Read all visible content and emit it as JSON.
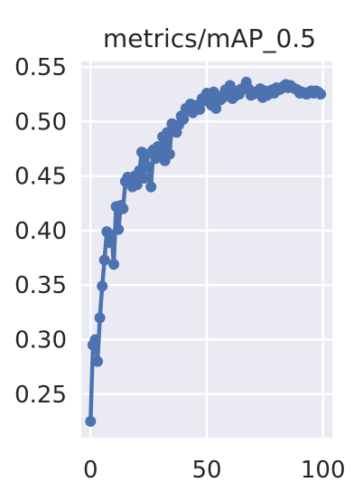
{
  "chart_data": {
    "type": "line",
    "title": "metrics/mAP_0.5",
    "xlabel": "",
    "ylabel": "",
    "xlim": [
      -4,
      104
    ],
    "ylim": [
      0.21,
      0.555
    ],
    "xticks": [
      0,
      50,
      100
    ],
    "xtick_labels": [
      "0",
      "50",
      "100"
    ],
    "yticks": [
      0.25,
      0.3,
      0.35,
      0.4,
      0.45,
      0.5,
      0.55
    ],
    "ytick_labels": [
      "0.25",
      "0.30",
      "0.35",
      "0.40",
      "0.45",
      "0.50",
      "0.55"
    ],
    "grid": true,
    "legend": false,
    "style": {
      "background": "#EAEAF2",
      "grid_color": "#FFFFFF",
      "line_color": "#4C72B0",
      "markers": true
    },
    "series": [
      {
        "x": [
          0,
          1,
          2,
          3,
          4,
          5,
          6,
          7,
          8,
          9,
          10,
          11,
          12,
          13,
          14,
          15,
          16,
          17,
          18,
          19,
          20,
          21,
          22,
          23,
          24,
          25,
          26,
          27,
          28,
          29,
          30,
          31,
          32,
          33,
          34,
          35,
          36,
          37,
          38,
          39,
          40,
          41,
          42,
          43,
          44,
          45,
          46,
          47,
          48,
          49,
          50,
          51,
          52,
          53,
          54,
          55,
          56,
          57,
          58,
          59,
          60,
          61,
          62,
          63,
          64,
          65,
          66,
          67,
          68,
          69,
          70,
          71,
          72,
          73,
          74,
          75,
          76,
          77,
          78,
          79,
          80,
          81,
          82,
          83,
          84,
          85,
          86,
          87,
          88,
          89,
          90,
          91,
          92,
          93,
          94,
          95,
          96,
          97,
          98,
          99
        ],
        "y": [
          0.225,
          0.295,
          0.3,
          0.28,
          0.32,
          0.349,
          0.373,
          0.399,
          0.389,
          0.396,
          0.369,
          0.422,
          0.401,
          0.423,
          0.42,
          0.445,
          0.449,
          0.445,
          0.44,
          0.45,
          0.442,
          0.455,
          0.472,
          0.448,
          0.47,
          0.458,
          0.44,
          0.474,
          0.466,
          0.477,
          0.469,
          0.486,
          0.464,
          0.49,
          0.47,
          0.498,
          0.494,
          0.49,
          0.497,
          0.505,
          0.502,
          0.512,
          0.51,
          0.516,
          0.508,
          0.514,
          0.515,
          0.511,
          0.521,
          0.519,
          0.526,
          0.524,
          0.515,
          0.527,
          0.512,
          0.523,
          0.52,
          0.522,
          0.529,
          0.524,
          0.533,
          0.521,
          0.523,
          0.528,
          0.525,
          0.53,
          0.53,
          0.536,
          0.53,
          0.524,
          0.525,
          0.527,
          0.526,
          0.53,
          0.522,
          0.528,
          0.524,
          0.526,
          0.529,
          0.526,
          0.531,
          0.529,
          0.53,
          0.532,
          0.534,
          0.531,
          0.533,
          0.531,
          0.53,
          0.529,
          0.526,
          0.527,
          0.526,
          0.525,
          0.527,
          0.528,
          0.526,
          0.528,
          0.527,
          0.525
        ]
      }
    ]
  }
}
